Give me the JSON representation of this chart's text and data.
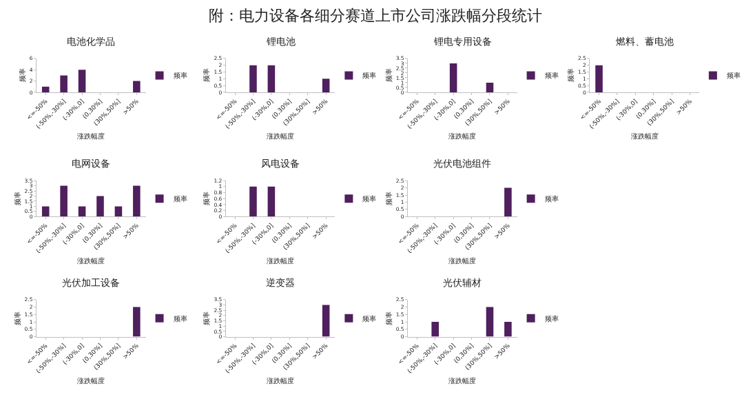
{
  "chart_data": [
    {
      "type": "other",
      "title": "附：电力设备各细分赛道上市公司涨跌幅分段统计"
    },
    {
      "type": "bar",
      "title": "电池化学品",
      "xlabel": "涨跌幅度",
      "ylabel": "频率",
      "categories": [
        "<=-50%",
        "(-50%,-30%]",
        "(-30%,0]",
        "(0,30%]",
        "(30%,50%]",
        ">50%"
      ],
      "series": [
        {
          "name": "频率",
          "color": "#4f1f5e",
          "values": [
            1,
            3,
            4,
            0,
            0,
            2
          ]
        }
      ],
      "ylim": [
        0,
        6
      ],
      "yticks": [
        0,
        2,
        4,
        6
      ],
      "legend": "right"
    },
    {
      "type": "bar",
      "title": "锂电池",
      "xlabel": "涨跌幅度",
      "ylabel": "频率",
      "categories": [
        "<=-50%",
        "(-50%,-30%]",
        "(-30%,0]",
        "(0,30%]",
        "(30%,50%]",
        ">50%"
      ],
      "series": [
        {
          "name": "频率",
          "color": "#4f1f5e",
          "values": [
            0,
            2,
            2,
            0,
            0,
            1
          ]
        }
      ],
      "ylim": [
        0,
        2.5
      ],
      "yticks": [
        0,
        0.5,
        1,
        1.5,
        2,
        2.5
      ],
      "legend": "right"
    },
    {
      "type": "bar",
      "title": "锂电专用设备",
      "xlabel": "涨跌幅度",
      "ylabel": "频率",
      "categories": [
        "<=-50%",
        "(-50%,-30%]",
        "(-30%,0]",
        "(0,30%]",
        "(30%,50%]",
        ">50%"
      ],
      "series": [
        {
          "name": "频率",
          "color": "#4f1f5e",
          "values": [
            0,
            0,
            3,
            0,
            1,
            0
          ]
        }
      ],
      "ylim": [
        0,
        3.5
      ],
      "yticks": [
        0,
        0.5,
        1,
        1.5,
        2,
        2.5,
        3,
        3.5
      ],
      "legend": "right"
    },
    {
      "type": "bar",
      "title": "燃料、蓄电池",
      "xlabel": "涨跌幅度",
      "ylabel": "频率",
      "categories": [
        "<=-50%",
        "(-50%,-30%]",
        "(-30%,0]",
        "(0,30%]",
        "(30%,50%]",
        ">50%"
      ],
      "series": [
        {
          "name": "频率",
          "color": "#4f1f5e",
          "values": [
            2,
            0,
            0,
            0,
            0,
            0
          ]
        }
      ],
      "ylim": [
        0,
        2.5
      ],
      "yticks": [
        0,
        0.5,
        1,
        1.5,
        2,
        2.5
      ],
      "legend": "right"
    },
    {
      "type": "bar",
      "title": "电网设备",
      "xlabel": "涨跌幅度",
      "ylabel": "频率",
      "categories": [
        "<=-50%",
        "(-50%,-30%]",
        "(-30%,0]",
        "(0,30%]",
        "(30%,50%]",
        ">50%"
      ],
      "series": [
        {
          "name": "频率",
          "color": "#4f1f5e",
          "values": [
            1,
            3,
            1,
            2,
            1,
            3
          ]
        }
      ],
      "ylim": [
        0,
        3.5
      ],
      "yticks": [
        0,
        0.5,
        1,
        1.5,
        2,
        2.5,
        3,
        3.5
      ],
      "legend": "right"
    },
    {
      "type": "bar",
      "title": "风电设备",
      "xlabel": "涨跌幅度",
      "ylabel": "频率",
      "categories": [
        "<=-50%",
        "(-50%,-30%]",
        "(-30%,0]",
        "(0,30%]",
        "(30%,50%]",
        ">50%"
      ],
      "series": [
        {
          "name": "频率",
          "color": "#4f1f5e",
          "values": [
            0,
            1,
            1,
            0,
            0,
            0
          ]
        }
      ],
      "ylim": [
        0,
        1.2
      ],
      "yticks": [
        0,
        0.2,
        0.4,
        0.6,
        0.8,
        1,
        1.2
      ],
      "legend": "right"
    },
    {
      "type": "bar",
      "title": "光伏电池组件",
      "xlabel": "涨跌幅度",
      "ylabel": "频率",
      "categories": [
        "<=-50%",
        "(-50%,-30%]",
        "(-30%,0]",
        "(0,30%]",
        "(30%,50%]",
        ">50%"
      ],
      "series": [
        {
          "name": "频率",
          "color": "#4f1f5e",
          "values": [
            0,
            0,
            0,
            0,
            0,
            2
          ]
        }
      ],
      "ylim": [
        0,
        2.5
      ],
      "yticks": [
        0,
        0.5,
        1,
        1.5,
        2,
        2.5
      ],
      "legend": "right"
    },
    {
      "type": "bar",
      "title": "光伏加工设备",
      "xlabel": "涨跌幅度",
      "ylabel": "频率",
      "categories": [
        "<=-50%",
        "(-50%,-30%]",
        "(-30%,0]",
        "(0,30%]",
        "(30%,50%]",
        ">50%"
      ],
      "series": [
        {
          "name": "频率",
          "color": "#4f1f5e",
          "values": [
            0,
            0,
            0,
            0,
            0,
            2
          ]
        }
      ],
      "ylim": [
        0,
        2.5
      ],
      "yticks": [
        0,
        0.5,
        1,
        1.5,
        2,
        2.5
      ],
      "legend": "right"
    },
    {
      "type": "bar",
      "title": "逆变器",
      "xlabel": "涨跌幅度",
      "ylabel": "频率",
      "categories": [
        "<=-50%",
        "(-50%,-30%]",
        "(-30%,0]",
        "(0,30%]",
        "(30%,50%]",
        ">50%"
      ],
      "series": [
        {
          "name": "频率",
          "color": "#4f1f5e",
          "values": [
            0,
            0,
            0,
            0,
            0,
            3
          ]
        }
      ],
      "ylim": [
        0,
        3.5
      ],
      "yticks": [
        0,
        0.5,
        1,
        1.5,
        2,
        2.5,
        3,
        3.5
      ],
      "legend": "right"
    },
    {
      "type": "bar",
      "title": "光伏辅材",
      "xlabel": "涨跌幅度",
      "ylabel": "频率",
      "categories": [
        "<=-50%",
        "(-50%,-30%]",
        "(-30%,0]",
        "(0,30%]",
        "(30%,50%]",
        ">50%"
      ],
      "series": [
        {
          "name": "频率",
          "color": "#4f1f5e",
          "values": [
            0,
            1,
            0,
            0,
            2,
            1
          ]
        }
      ],
      "ylim": [
        0,
        2.5
      ],
      "yticks": [
        0,
        0.5,
        1,
        1.5,
        2,
        2.5
      ],
      "legend": "right"
    }
  ]
}
